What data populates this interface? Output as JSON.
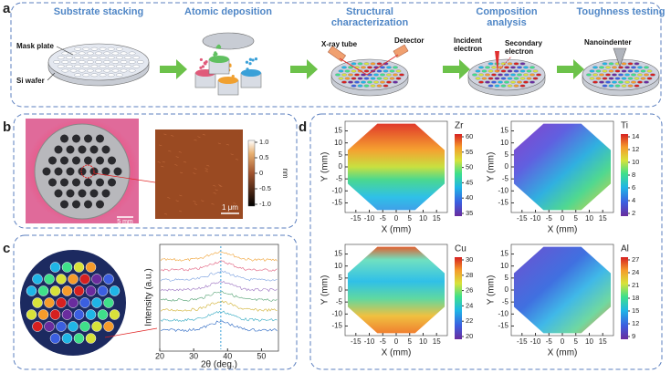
{
  "panel_a": {
    "label": "a",
    "steps": [
      {
        "title": "Substrate stacking",
        "notes": [
          "Mask plate",
          "Si wafer"
        ]
      },
      {
        "title": "Atomic deposition"
      },
      {
        "title": "Structural characterization",
        "notes": [
          "X-ray tube",
          "Detector"
        ]
      },
      {
        "title": "Composition analysis",
        "notes": [
          "Incident electron",
          "Secondary electron"
        ]
      },
      {
        "title": "Toughness testing",
        "notes": [
          "Nanoindenter"
        ]
      }
    ]
  },
  "panel_b": {
    "label": "b",
    "scale_macro": "5 mm",
    "scale_micro": "1 μm",
    "colorbar_unit": "nm",
    "colorbar_ticks": [
      "1.0",
      "0.5",
      "0",
      "-0.5",
      "-1.0"
    ]
  },
  "panel_c": {
    "label": "c",
    "y_label": "Intensity (a.u.)",
    "x_label": "2θ (deg.)",
    "x_ticks": [
      20,
      30,
      40,
      50
    ]
  },
  "panel_d": {
    "label": "d",
    "x_label": "X (mm)",
    "y_label": "Y (mm)",
    "x_ticks": [
      -15,
      -10,
      -5,
      0,
      5,
      10,
      15
    ],
    "y_ticks": [
      15,
      10,
      5,
      0,
      -5,
      -10,
      -15
    ],
    "maps": [
      {
        "element": "Zr",
        "colorbar_ticks": [
          60,
          55,
          50,
          45,
          40,
          35
        ]
      },
      {
        "element": "Ti",
        "colorbar_ticks": [
          14,
          12,
          10,
          8,
          6,
          4,
          2
        ]
      },
      {
        "element": "Cu",
        "colorbar_ticks": [
          30,
          28,
          26,
          24,
          22,
          20
        ]
      },
      {
        "element": "Al",
        "colorbar_ticks": [
          27,
          24,
          21,
          18,
          15,
          12,
          9
        ]
      }
    ]
  }
}
